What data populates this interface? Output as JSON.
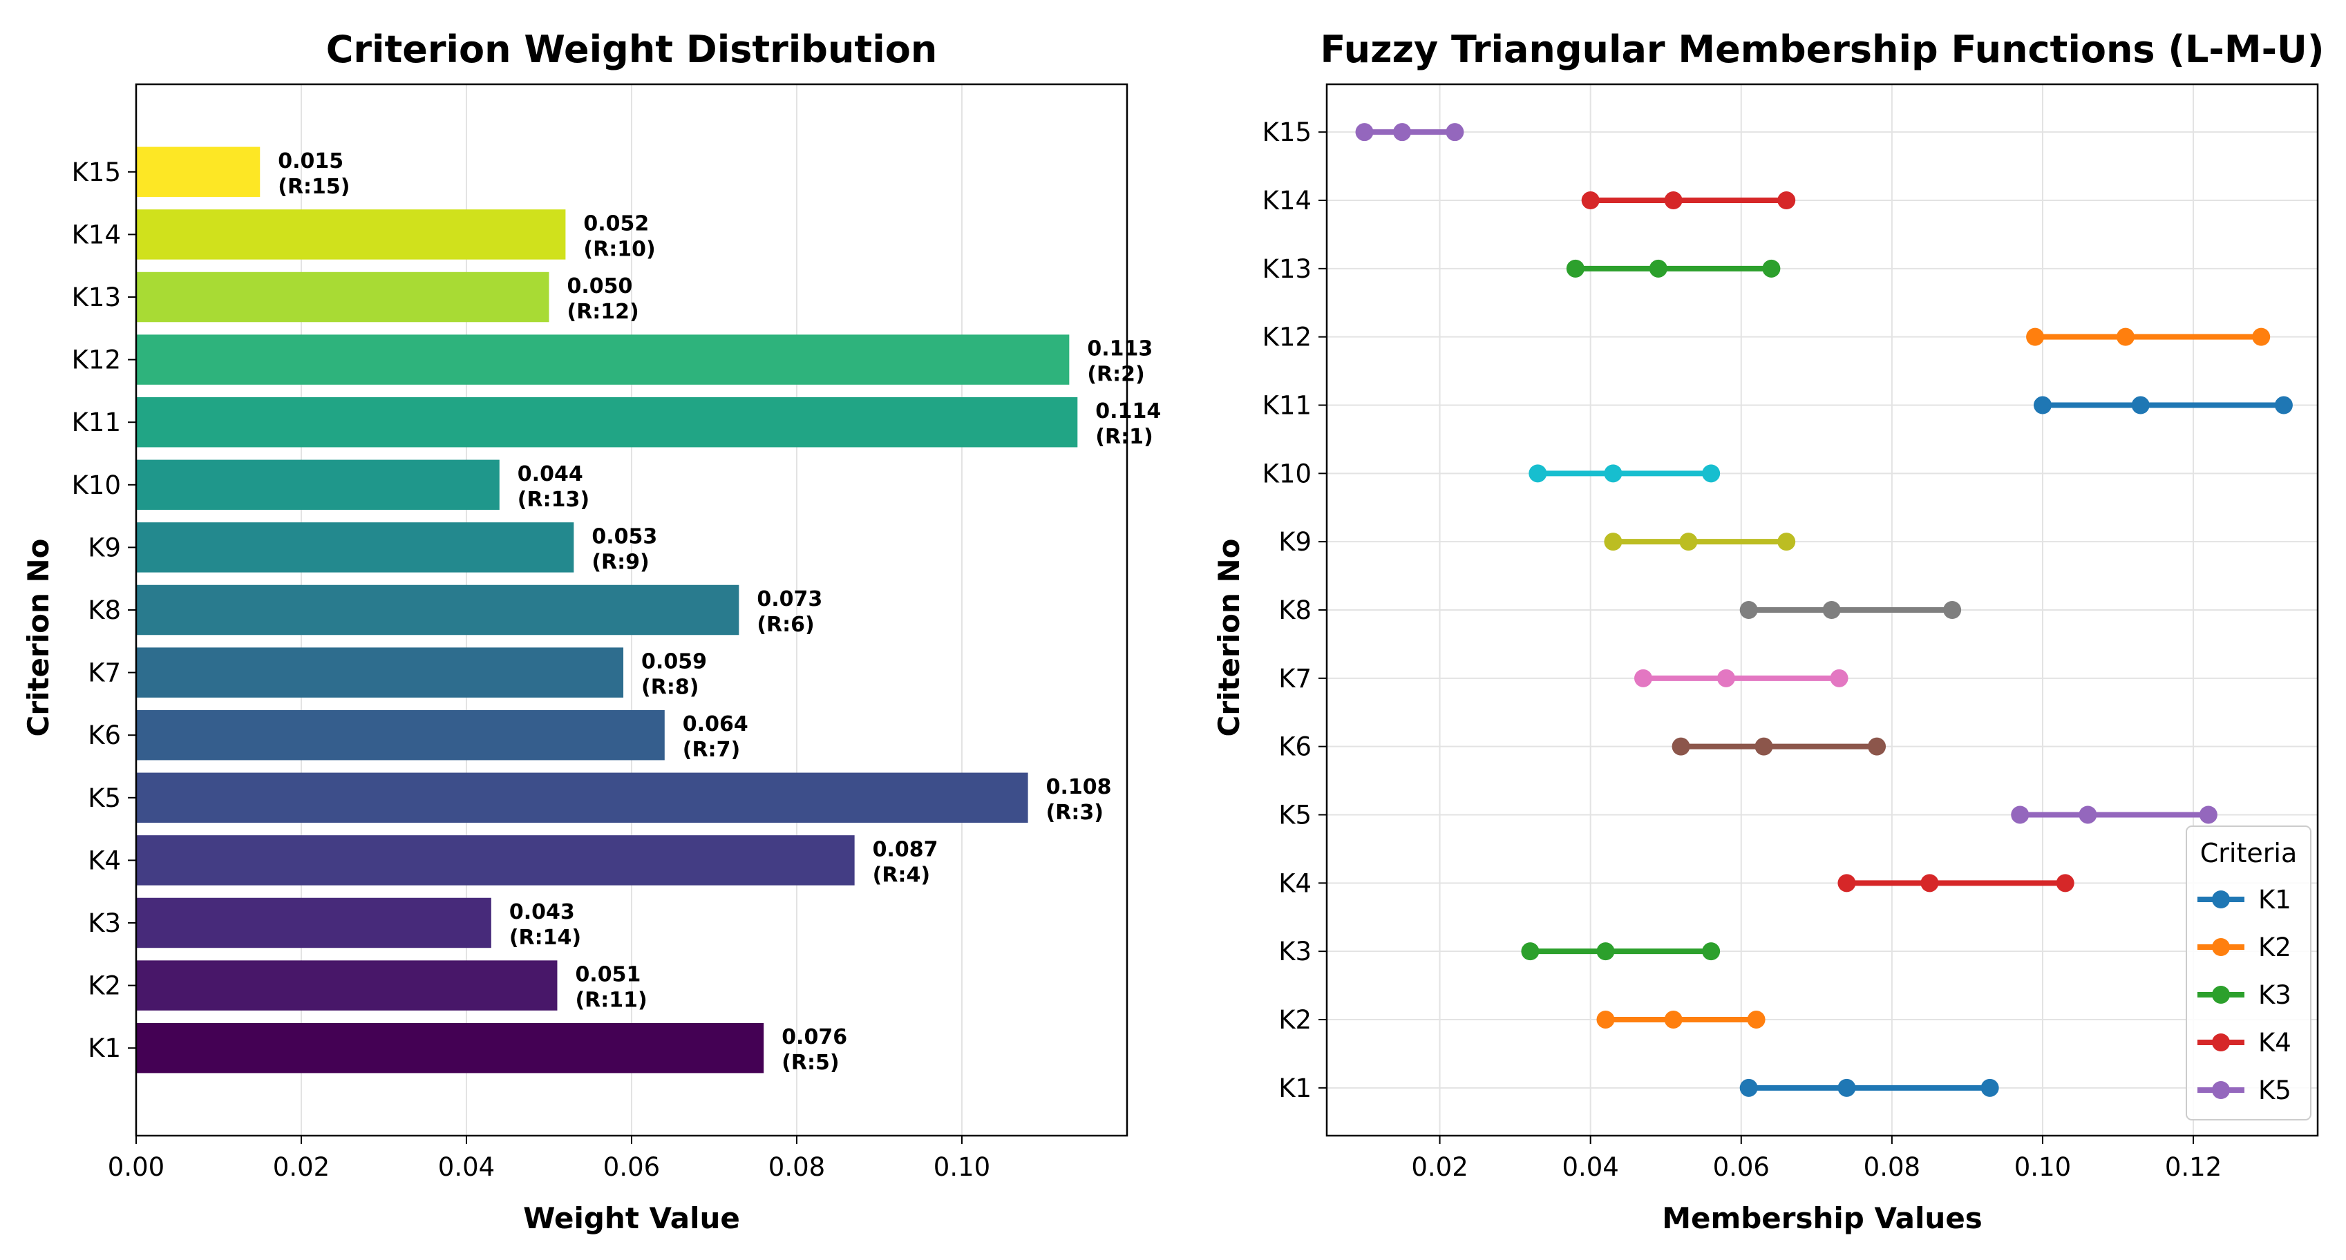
{
  "chart_data": [
    {
      "type": "bar",
      "orientation": "horizontal",
      "title": "Criterion Weight Distribution",
      "xlabel": "Weight Value",
      "ylabel": "Criterion No",
      "xlim": [
        0.0,
        0.12
      ],
      "xticks": [
        "0.00",
        "0.02",
        "0.04",
        "0.06",
        "0.08",
        "0.10"
      ],
      "xtick_values": [
        0.0,
        0.02,
        0.04,
        0.06,
        0.08,
        0.1
      ],
      "grid": true,
      "categories": [
        "K1",
        "K2",
        "K3",
        "K4",
        "K5",
        "K6",
        "K7",
        "K8",
        "K9",
        "K10",
        "K11",
        "K12",
        "K13",
        "K14",
        "K15"
      ],
      "values": [
        0.076,
        0.051,
        0.043,
        0.087,
        0.108,
        0.064,
        0.059,
        0.073,
        0.053,
        0.044,
        0.114,
        0.113,
        0.05,
        0.052,
        0.015
      ],
      "value_labels": [
        "0.076",
        "0.051",
        "0.043",
        "0.087",
        "0.108",
        "0.064",
        "0.059",
        "0.073",
        "0.053",
        "0.044",
        "0.114",
        "0.113",
        "0.050",
        "0.052",
        "0.015"
      ],
      "rank_labels": [
        "(R:5)",
        "(R:11)",
        "(R:14)",
        "(R:4)",
        "(R:3)",
        "(R:7)",
        "(R:8)",
        "(R:6)",
        "(R:9)",
        "(R:13)",
        "(R:1)",
        "(R:2)",
        "(R:12)",
        "(R:10)",
        "(R:15)"
      ],
      "colors": [
        "#440154",
        "#481769",
        "#472a7a",
        "#433d84",
        "#3d4e8a",
        "#355e8d",
        "#2e6d8e",
        "#297b8e",
        "#23898e",
        "#1f978b",
        "#21a585",
        "#2eb37c",
        "#46c06f",
        "#65cb5e",
        "#89d548"
      ],
      "top_color": "#fde725",
      "alt_colors": [
        "#a8db34",
        "#d0e11c"
      ]
    },
    {
      "type": "line",
      "title": "Fuzzy Triangular Membership Functions (L-M-U)",
      "xlabel": "Membership Values",
      "ylabel": "Criterion No",
      "xlim": [
        0.005,
        0.1365
      ],
      "xticks": [
        "0.02",
        "0.04",
        "0.06",
        "0.08",
        "0.10",
        "0.12"
      ],
      "xtick_values": [
        0.02,
        0.04,
        0.06,
        0.08,
        0.1,
        0.12
      ],
      "grid": true,
      "legend": {
        "title": "Criteria",
        "placement": "lower-right",
        "entries": [
          "K1",
          "K2",
          "K3",
          "K4",
          "K5"
        ]
      },
      "series": [
        {
          "name": "K1",
          "values": [
            0.061,
            0.074,
            0.093
          ],
          "color": "#1f77b4"
        },
        {
          "name": "K2",
          "values": [
            0.042,
            0.051,
            0.062
          ],
          "color": "#ff7f0e"
        },
        {
          "name": "K3",
          "values": [
            0.032,
            0.042,
            0.056
          ],
          "color": "#2ca02c"
        },
        {
          "name": "K4",
          "values": [
            0.074,
            0.085,
            0.103
          ],
          "color": "#d62728"
        },
        {
          "name": "K5",
          "values": [
            0.097,
            0.106,
            0.122
          ],
          "color": "#9467bd"
        },
        {
          "name": "K6",
          "values": [
            0.052,
            0.063,
            0.078
          ],
          "color": "#8c564b"
        },
        {
          "name": "K7",
          "values": [
            0.047,
            0.058,
            0.073
          ],
          "color": "#e377c2"
        },
        {
          "name": "K8",
          "values": [
            0.061,
            0.072,
            0.088
          ],
          "color": "#7f7f7f"
        },
        {
          "name": "K9",
          "values": [
            0.043,
            0.053,
            0.066
          ],
          "color": "#bcbd22"
        },
        {
          "name": "K10",
          "values": [
            0.033,
            0.043,
            0.056
          ],
          "color": "#17becf"
        },
        {
          "name": "K11",
          "values": [
            0.1,
            0.113,
            0.132
          ],
          "color": "#1f77b4"
        },
        {
          "name": "K12",
          "values": [
            0.099,
            0.111,
            0.129
          ],
          "color": "#ff7f0e"
        },
        {
          "name": "K13",
          "values": [
            0.038,
            0.049,
            0.064
          ],
          "color": "#2ca02c"
        },
        {
          "name": "K14",
          "values": [
            0.04,
            0.051,
            0.066
          ],
          "color": "#d62728"
        },
        {
          "name": "K15",
          "values": [
            0.01,
            0.015,
            0.022
          ],
          "color": "#9467bd"
        }
      ]
    }
  ]
}
